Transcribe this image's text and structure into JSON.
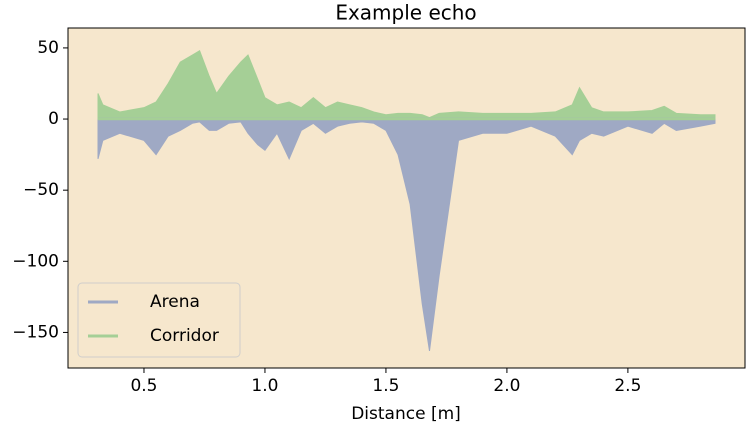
{
  "chart_data": {
    "type": "area",
    "title": "Example echo",
    "xlabel": "Distance [m]",
    "x": [
      0.31,
      0.33,
      0.4,
      0.5,
      0.55,
      0.6,
      0.65,
      0.7,
      0.73,
      0.77,
      0.8,
      0.85,
      0.9,
      0.93,
      0.97,
      1.0,
      1.05,
      1.1,
      1.15,
      1.2,
      1.25,
      1.3,
      1.35,
      1.4,
      1.45,
      1.5,
      1.55,
      1.6,
      1.65,
      1.68,
      1.72,
      1.8,
      1.9,
      2.0,
      2.1,
      2.2,
      2.27,
      2.3,
      2.35,
      2.4,
      2.5,
      2.6,
      2.65,
      2.7,
      2.8,
      2.86
    ],
    "series": [
      {
        "name": "Arena",
        "color": "#9fa9c4",
        "values": [
          -28,
          -15,
          -10,
          -15,
          -25,
          -12,
          -8,
          -3,
          -2,
          -8,
          -8,
          -3,
          -2,
          -10,
          -18,
          -22,
          -10,
          -28,
          -8,
          -3,
          -10,
          -5,
          -3,
          -2,
          -3,
          -8,
          -25,
          -60,
          -130,
          -163,
          -110,
          -15,
          -10,
          -10,
          -5,
          -12,
          -25,
          -15,
          -10,
          -12,
          -5,
          -10,
          -3,
          -8,
          -5,
          -3
        ]
      },
      {
        "name": "Corridor",
        "color": "#a5cf96",
        "values": [
          18,
          10,
          5,
          8,
          12,
          25,
          40,
          45,
          48,
          30,
          18,
          30,
          40,
          45,
          28,
          15,
          10,
          12,
          8,
          15,
          8,
          12,
          10,
          8,
          5,
          3,
          4,
          4,
          3,
          1,
          4,
          5,
          4,
          4,
          4,
          5,
          10,
          22,
          8,
          5,
          5,
          6,
          9,
          4,
          3,
          3
        ]
      }
    ],
    "xlim": [
      0.186,
      2.984
    ],
    "ylim": [
      -175,
      64
    ],
    "xticks": [
      0.5,
      {
        "value": 1,
        "label": "1.0"
      },
      1.5,
      {
        "value": 2,
        "label": "2.0"
      },
      2.5
    ],
    "yticks": [
      {
        "value": -150,
        "label": "−150"
      },
      {
        "value": -100,
        "label": "−100"
      },
      {
        "value": -50,
        "label": "−50"
      },
      0,
      50
    ],
    "legend": "lower left",
    "background": "#f6e7cd"
  }
}
